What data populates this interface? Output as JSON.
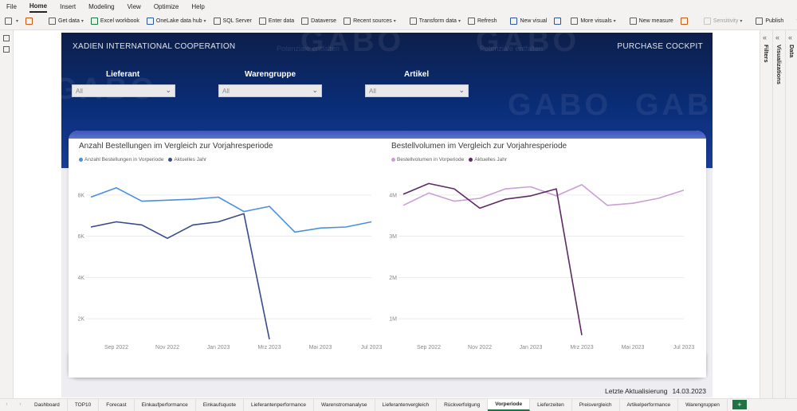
{
  "menu": [
    "File",
    "Home",
    "Insert",
    "Modeling",
    "View",
    "Optimize",
    "Help"
  ],
  "menu_active": "Home",
  "ribbon": {
    "get_data": "Get data",
    "excel": "Excel workbook",
    "onelake": "OneLake data hub",
    "sql": "SQL Server",
    "enter_data": "Enter data",
    "dataverse": "Dataverse",
    "recent": "Recent sources",
    "transform": "Transform data",
    "refresh": "Refresh",
    "new_visual": "New visual",
    "more_visuals": "More visuals",
    "new_measure": "New measure",
    "sensitivity": "Sensitivity",
    "publish": "Publish"
  },
  "report": {
    "company": "XADIEN INTERNATIONAL COOPERATION",
    "cockpit": "PURCHASE COCKPIT",
    "watermark": "GABO",
    "watermark_slogan": "Potenziale entfalten"
  },
  "slicers": [
    {
      "label": "Lieferant",
      "value": "All"
    },
    {
      "label": "Warengruppe",
      "value": "All"
    },
    {
      "label": "Artikel",
      "value": "All"
    }
  ],
  "chart_data": [
    {
      "type": "line",
      "title": "Anzahl Bestellungen im Vergleich zur Vorjahresperiode",
      "x": [
        "Aug 2022",
        "Sep 2022",
        "Okt 2022",
        "Nov 2022",
        "Dez 2022",
        "Jan 2023",
        "Feb 2023",
        "Mrz 2023",
        "Apr 2023",
        "Mai 2023",
        "Jun 2023",
        "Jul 2023"
      ],
      "xticks": [
        "Sep 2022",
        "Nov 2022",
        "Jan 2023",
        "Mrz 2023",
        "Mai 2023",
        "Jul 2023"
      ],
      "yticks": [
        "2K",
        "4K",
        "6K",
        "8K"
      ],
      "ylim": [
        1000,
        9000
      ],
      "series": [
        {
          "name": "Anzahl Bestellungen in Vorperiode",
          "color": "#4a8fe0",
          "values": [
            7900,
            8350,
            7700,
            7750,
            7800,
            7900,
            7200,
            7450,
            6200,
            6400,
            6450,
            6700
          ]
        },
        {
          "name": "Aktuelles Jahr",
          "color": "#3a4a8c",
          "values": [
            6450,
            6700,
            6550,
            5900,
            6550,
            6700,
            7100,
            1000,
            null,
            null,
            null,
            null
          ]
        }
      ],
      "legend": "top-left",
      "grid": true
    },
    {
      "type": "line",
      "title": "Bestellvolumen im Vergleich zur Vorjahresperiode",
      "x": [
        "Aug 2022",
        "Sep 2022",
        "Okt 2022",
        "Nov 2022",
        "Dez 2022",
        "Jan 2023",
        "Feb 2023",
        "Mrz 2023",
        "Apr 2023",
        "Mai 2023",
        "Jun 2023",
        "Jul 2023"
      ],
      "xticks": [
        "Sep 2022",
        "Nov 2022",
        "Jan 2023",
        "Mrz 2023",
        "Mai 2023",
        "Jul 2023"
      ],
      "yticks": [
        "1M",
        "2M",
        "3M",
        "4M"
      ],
      "ylim": [
        500000,
        4500000
      ],
      "series": [
        {
          "name": "Bestellvolumen in Vorperiode",
          "color": "#c9a0d4",
          "values": [
            3750000,
            4050000,
            3850000,
            3920000,
            4150000,
            4200000,
            3980000,
            4250000,
            3750000,
            3800000,
            3920000,
            4120000
          ]
        },
        {
          "name": "Aktuelles Jahr",
          "color": "#5c2a63",
          "values": [
            4020000,
            4280000,
            4150000,
            3680000,
            3900000,
            3980000,
            4150000,
            600000,
            null,
            null,
            null,
            null
          ]
        }
      ],
      "legend": "top-left",
      "grid": true
    }
  ],
  "updated": {
    "label": "Letzte Aktualisierung",
    "date": "14.03.2023"
  },
  "panes": {
    "filters": "Filters",
    "visualizations": "Visualizations",
    "data": "Data"
  },
  "tabs": [
    "Dashboard",
    "TOP10",
    "Forecast",
    "Einkaufperformance",
    "Einkaufsquote",
    "Lieferantenperformance",
    "Warenstromanalyse",
    "Lieferantenvergleich",
    "Rückverfolgung",
    "Vorperiode",
    "Lieferzeiten",
    "Preisvergleich",
    "Artikelperformance",
    "Warengruppen"
  ],
  "active_tab": "Vorperiode",
  "add_tab": "+"
}
